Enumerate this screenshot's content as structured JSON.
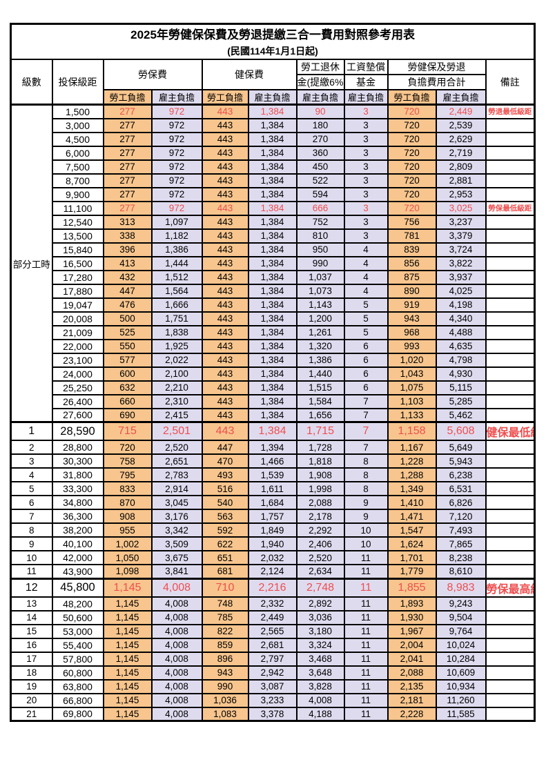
{
  "table": {
    "title": "2025年勞健保保費及勞退提繳三合一費用對照參考用表",
    "subtitle": "(民國114年1月1日起)",
    "part_time_label": "部分工時",
    "headers": {
      "level": "級數",
      "salary": "投保級距",
      "labor": "勞保費",
      "health": "健保費",
      "pension_top": "勞工退休",
      "pension_bottom": "金(提繳6%)",
      "fund_top": "工資墊償",
      "fund_bottom": "基金",
      "total_top": "勞健保及勞退",
      "total_bottom": "負擔費用合計",
      "remark": "備註",
      "employee": "勞工負擔",
      "employer": "雇主負擔"
    },
    "colors": {
      "employee_bg": "#F7C58D",
      "employer_bg": "#DFDBEF",
      "highlight_red": "#EF4E4E",
      "grid": "#000000"
    },
    "rows": [
      {
        "level": null,
        "salary": "1,500",
        "v": [
          "277",
          "972",
          "443",
          "1,384",
          "90",
          "3",
          "720",
          "2,449"
        ],
        "remark": "勞退最低級距",
        "cls": "red"
      },
      {
        "level": null,
        "salary": "3,000",
        "v": [
          "277",
          "972",
          "443",
          "1,384",
          "180",
          "3",
          "720",
          "2,539"
        ],
        "remark": "",
        "cls": ""
      },
      {
        "level": null,
        "salary": "4,500",
        "v": [
          "277",
          "972",
          "443",
          "1,384",
          "270",
          "3",
          "720",
          "2,629"
        ],
        "remark": "",
        "cls": ""
      },
      {
        "level": null,
        "salary": "6,000",
        "v": [
          "277",
          "972",
          "443",
          "1,384",
          "360",
          "3",
          "720",
          "2,719"
        ],
        "remark": "",
        "cls": ""
      },
      {
        "level": null,
        "salary": "7,500",
        "v": [
          "277",
          "972",
          "443",
          "1,384",
          "450",
          "3",
          "720",
          "2,809"
        ],
        "remark": "",
        "cls": ""
      },
      {
        "level": null,
        "salary": "8,700",
        "v": [
          "277",
          "972",
          "443",
          "1,384",
          "522",
          "3",
          "720",
          "2,881"
        ],
        "remark": "",
        "cls": ""
      },
      {
        "level": null,
        "salary": "9,900",
        "v": [
          "277",
          "972",
          "443",
          "1,384",
          "594",
          "3",
          "720",
          "2,953"
        ],
        "remark": "",
        "cls": ""
      },
      {
        "level": null,
        "salary": "11,100",
        "v": [
          "277",
          "972",
          "443",
          "1,384",
          "666",
          "3",
          "720",
          "3,025"
        ],
        "remark": "勞保最低級距",
        "cls": "red"
      },
      {
        "level": null,
        "salary": "12,540",
        "v": [
          "313",
          "1,097",
          "443",
          "1,384",
          "752",
          "3",
          "756",
          "3,237"
        ],
        "remark": "",
        "cls": ""
      },
      {
        "level": null,
        "salary": "13,500",
        "v": [
          "338",
          "1,182",
          "443",
          "1,384",
          "810",
          "3",
          "781",
          "3,379"
        ],
        "remark": "",
        "cls": ""
      },
      {
        "level": null,
        "salary": "15,840",
        "v": [
          "396",
          "1,386",
          "443",
          "1,384",
          "950",
          "4",
          "839",
          "3,724"
        ],
        "remark": "",
        "cls": ""
      },
      {
        "level": null,
        "salary": "16,500",
        "v": [
          "413",
          "1,444",
          "443",
          "1,384",
          "990",
          "4",
          "856",
          "3,822"
        ],
        "remark": "",
        "cls": ""
      },
      {
        "level": null,
        "salary": "17,280",
        "v": [
          "432",
          "1,512",
          "443",
          "1,384",
          "1,037",
          "4",
          "875",
          "3,937"
        ],
        "remark": "",
        "cls": ""
      },
      {
        "level": null,
        "salary": "17,880",
        "v": [
          "447",
          "1,564",
          "443",
          "1,384",
          "1,073",
          "4",
          "890",
          "4,025"
        ],
        "remark": "",
        "cls": ""
      },
      {
        "level": null,
        "salary": "19,047",
        "v": [
          "476",
          "1,666",
          "443",
          "1,384",
          "1,143",
          "5",
          "919",
          "4,198"
        ],
        "remark": "",
        "cls": ""
      },
      {
        "level": null,
        "salary": "20,008",
        "v": [
          "500",
          "1,751",
          "443",
          "1,384",
          "1,200",
          "5",
          "943",
          "4,340"
        ],
        "remark": "",
        "cls": ""
      },
      {
        "level": null,
        "salary": "21,009",
        "v": [
          "525",
          "1,838",
          "443",
          "1,384",
          "1,261",
          "5",
          "968",
          "4,488"
        ],
        "remark": "",
        "cls": ""
      },
      {
        "level": null,
        "salary": "22,000",
        "v": [
          "550",
          "1,925",
          "443",
          "1,384",
          "1,320",
          "6",
          "993",
          "4,635"
        ],
        "remark": "",
        "cls": ""
      },
      {
        "level": null,
        "salary": "23,100",
        "v": [
          "577",
          "2,022",
          "443",
          "1,384",
          "1,386",
          "6",
          "1,020",
          "4,798"
        ],
        "remark": "",
        "cls": ""
      },
      {
        "level": null,
        "salary": "24,000",
        "v": [
          "600",
          "2,100",
          "443",
          "1,384",
          "1,440",
          "6",
          "1,043",
          "4,930"
        ],
        "remark": "",
        "cls": ""
      },
      {
        "level": null,
        "salary": "25,250",
        "v": [
          "632",
          "2,210",
          "443",
          "1,384",
          "1,515",
          "6",
          "1,075",
          "5,115"
        ],
        "remark": "",
        "cls": ""
      },
      {
        "level": null,
        "salary": "26,400",
        "v": [
          "660",
          "2,310",
          "443",
          "1,384",
          "1,584",
          "7",
          "1,103",
          "5,285"
        ],
        "remark": "",
        "cls": ""
      },
      {
        "level": null,
        "salary": "27,600",
        "v": [
          "690",
          "2,415",
          "443",
          "1,384",
          "1,656",
          "7",
          "1,133",
          "5,462"
        ],
        "remark": "",
        "cls": ""
      },
      {
        "level": "1",
        "salary": "28,590",
        "v": [
          "715",
          "2,501",
          "443",
          "1,384",
          "1,715",
          "7",
          "1,158",
          "5,608"
        ],
        "remark": "健保最低級距",
        "cls": "red big section"
      },
      {
        "level": "2",
        "salary": "28,800",
        "v": [
          "720",
          "2,520",
          "447",
          "1,394",
          "1,728",
          "7",
          "1,167",
          "5,649"
        ],
        "remark": "",
        "cls": ""
      },
      {
        "level": "3",
        "salary": "30,300",
        "v": [
          "758",
          "2,651",
          "470",
          "1,466",
          "1,818",
          "8",
          "1,228",
          "5,943"
        ],
        "remark": "",
        "cls": ""
      },
      {
        "level": "4",
        "salary": "31,800",
        "v": [
          "795",
          "2,783",
          "493",
          "1,539",
          "1,908",
          "8",
          "1,288",
          "6,238"
        ],
        "remark": "",
        "cls": ""
      },
      {
        "level": "5",
        "salary": "33,300",
        "v": [
          "833",
          "2,914",
          "516",
          "1,611",
          "1,998",
          "8",
          "1,349",
          "6,531"
        ],
        "remark": "",
        "cls": ""
      },
      {
        "level": "6",
        "salary": "34,800",
        "v": [
          "870",
          "3,045",
          "540",
          "1,684",
          "2,088",
          "9",
          "1,410",
          "6,826"
        ],
        "remark": "",
        "cls": ""
      },
      {
        "level": "7",
        "salary": "36,300",
        "v": [
          "908",
          "3,176",
          "563",
          "1,757",
          "2,178",
          "9",
          "1,471",
          "7,120"
        ],
        "remark": "",
        "cls": ""
      },
      {
        "level": "8",
        "salary": "38,200",
        "v": [
          "955",
          "3,342",
          "592",
          "1,849",
          "2,292",
          "10",
          "1,547",
          "7,493"
        ],
        "remark": "",
        "cls": ""
      },
      {
        "level": "9",
        "salary": "40,100",
        "v": [
          "1,002",
          "3,509",
          "622",
          "1,940",
          "2,406",
          "10",
          "1,624",
          "7,865"
        ],
        "remark": "",
        "cls": ""
      },
      {
        "level": "10",
        "salary": "42,000",
        "v": [
          "1,050",
          "3,675",
          "651",
          "2,032",
          "2,520",
          "11",
          "1,701",
          "8,238"
        ],
        "remark": "",
        "cls": ""
      },
      {
        "level": "11",
        "salary": "43,900",
        "v": [
          "1,098",
          "3,841",
          "681",
          "2,124",
          "2,634",
          "11",
          "1,779",
          "8,610"
        ],
        "remark": "",
        "cls": ""
      },
      {
        "level": "12",
        "salary": "45,800",
        "v": [
          "1,145",
          "4,008",
          "710",
          "2,216",
          "2,748",
          "11",
          "1,855",
          "8,983"
        ],
        "remark": "勞保最高級距",
        "cls": "red big section"
      },
      {
        "level": "13",
        "salary": "48,200",
        "v": [
          "1,145",
          "4,008",
          "748",
          "2,332",
          "2,892",
          "11",
          "1,893",
          "9,243"
        ],
        "remark": "",
        "cls": ""
      },
      {
        "level": "14",
        "salary": "50,600",
        "v": [
          "1,145",
          "4,008",
          "785",
          "2,449",
          "3,036",
          "11",
          "1,930",
          "9,504"
        ],
        "remark": "",
        "cls": ""
      },
      {
        "level": "15",
        "salary": "53,000",
        "v": [
          "1,145",
          "4,008",
          "822",
          "2,565",
          "3,180",
          "11",
          "1,967",
          "9,764"
        ],
        "remark": "",
        "cls": ""
      },
      {
        "level": "16",
        "salary": "55,400",
        "v": [
          "1,145",
          "4,008",
          "859",
          "2,681",
          "3,324",
          "11",
          "2,004",
          "10,024"
        ],
        "remark": "",
        "cls": ""
      },
      {
        "level": "17",
        "salary": "57,800",
        "v": [
          "1,145",
          "4,008",
          "896",
          "2,797",
          "3,468",
          "11",
          "2,041",
          "10,284"
        ],
        "remark": "",
        "cls": ""
      },
      {
        "level": "18",
        "salary": "60,800",
        "v": [
          "1,145",
          "4,008",
          "943",
          "2,942",
          "3,648",
          "11",
          "2,088",
          "10,609"
        ],
        "remark": "",
        "cls": ""
      },
      {
        "level": "19",
        "salary": "63,800",
        "v": [
          "1,145",
          "4,008",
          "990",
          "3,087",
          "3,828",
          "11",
          "2,135",
          "10,934"
        ],
        "remark": "",
        "cls": ""
      },
      {
        "level": "20",
        "salary": "66,800",
        "v": [
          "1,145",
          "4,008",
          "1,036",
          "3,233",
          "4,008",
          "11",
          "2,181",
          "11,260"
        ],
        "remark": "",
        "cls": ""
      },
      {
        "level": "21",
        "salary": "69,800",
        "v": [
          "1,145",
          "4,008",
          "1,083",
          "3,378",
          "4,188",
          "11",
          "2,228",
          "11,585"
        ],
        "remark": "",
        "cls": ""
      }
    ]
  }
}
